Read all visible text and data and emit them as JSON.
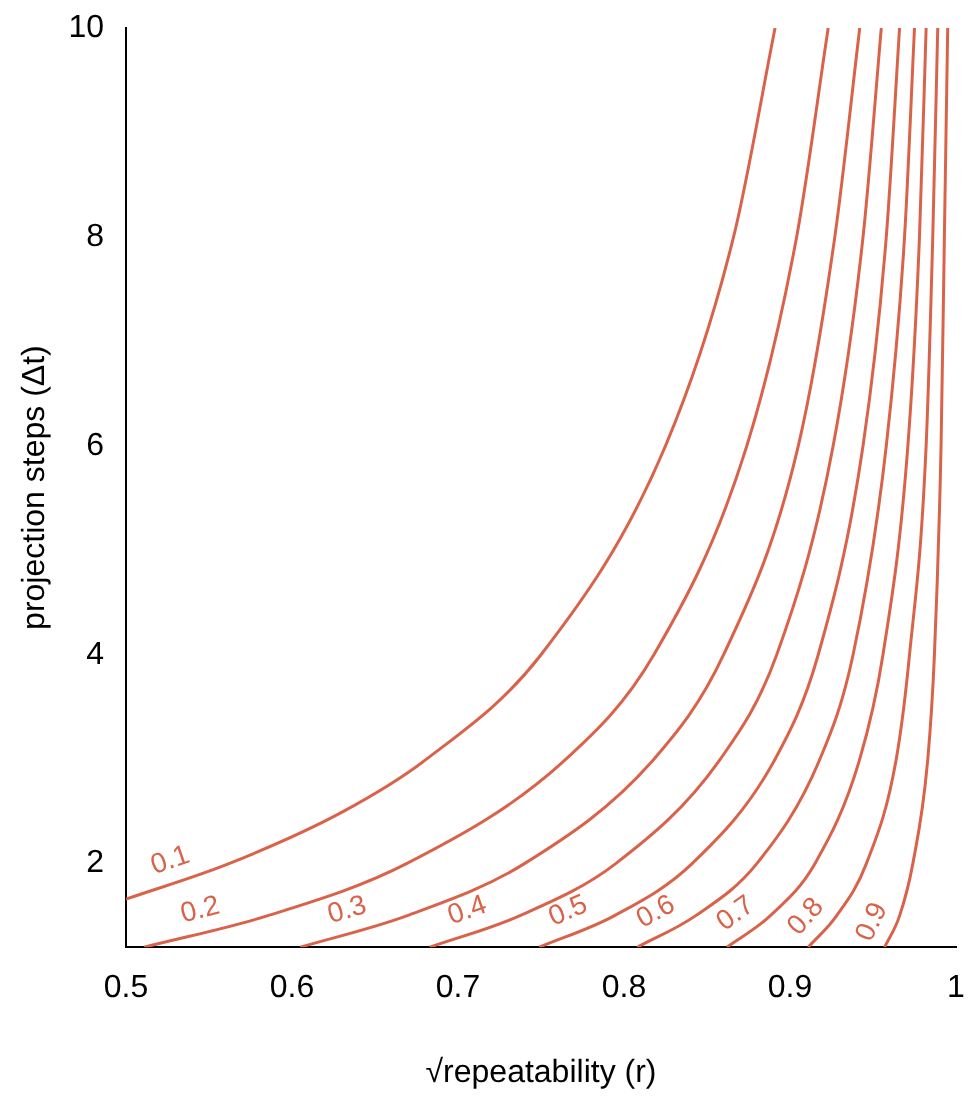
{
  "chart_data": {
    "type": "line",
    "xlabel": "√repeatability (r)",
    "ylabel": "projection steps (Δt)",
    "xlim": [
      0.5,
      1
    ],
    "xticks": [
      0.5,
      0.6,
      0.7,
      0.8,
      0.9,
      1
    ],
    "ylim": [
      1.2,
      10
    ],
    "yticks": [
      2,
      4,
      6,
      8,
      10
    ],
    "grid": false,
    "legend": false,
    "marker": "none",
    "line_style": "solid",
    "series": [
      {
        "name": "0.1",
        "color": "#d9634a",
        "x": [
          0.5,
          0.562,
          0.631,
          0.681,
          0.75,
          0.825,
          0.866,
          0.891
        ],
        "values": [
          1.66,
          2,
          2.5,
          3,
          4,
          6,
          8,
          10
        ]
      },
      {
        "name": "0.2",
        "color": "#d9634a",
        "x": [
          0.511,
          0.585,
          0.669,
          0.765,
          0.818,
          0.874,
          0.904,
          0.923
        ],
        "values": [
          1.2,
          1.5,
          2,
          3,
          4,
          6,
          8,
          10
        ]
      },
      {
        "name": "0.3",
        "color": "#d9634a",
        "x": [
          0.605,
          0.669,
          0.74,
          0.818,
          0.86,
          0.905,
          0.927,
          0.942
        ],
        "values": [
          1.2,
          1.5,
          2,
          3,
          4,
          6,
          8,
          10
        ]
      },
      {
        "name": "0.4",
        "color": "#d9634a",
        "x": [
          0.683,
          0.737,
          0.795,
          0.858,
          0.892,
          0.926,
          0.944,
          0.955
        ],
        "values": [
          1.2,
          1.5,
          2,
          3,
          4,
          6,
          8,
          10
        ]
      },
      {
        "name": "0.5",
        "color": "#d9634a",
        "x": [
          0.749,
          0.794,
          0.841,
          0.891,
          0.917,
          0.944,
          0.958,
          0.966
        ],
        "values": [
          1.2,
          1.5,
          2,
          3,
          4,
          6,
          8,
          10
        ]
      },
      {
        "name": "0.6",
        "color": "#d9634a",
        "x": [
          0.808,
          0.843,
          0.88,
          0.918,
          0.938,
          0.958,
          0.969,
          0.975
        ],
        "values": [
          1.2,
          1.5,
          2,
          3,
          4,
          6,
          8,
          10
        ]
      },
      {
        "name": "0.7",
        "color": "#d9634a",
        "x": [
          0.862,
          0.888,
          0.915,
          0.942,
          0.956,
          0.971,
          0.978,
          0.982
        ],
        "values": [
          1.2,
          1.5,
          2,
          3,
          4,
          6,
          8,
          10
        ]
      },
      {
        "name": "0.8",
        "color": "#d9634a",
        "x": [
          0.911,
          0.928,
          0.946,
          0.964,
          0.972,
          0.982,
          0.986,
          0.989
        ],
        "values": [
          1.2,
          1.5,
          2,
          3,
          4,
          6,
          8,
          10
        ]
      },
      {
        "name": "0.9",
        "color": "#d9634a",
        "x": [
          0.957,
          0.966,
          0.974,
          0.983,
          0.987,
          0.991,
          0.993,
          0.995
        ],
        "values": [
          1.2,
          1.5,
          2,
          3,
          4,
          6,
          8,
          10
        ]
      }
    ]
  }
}
